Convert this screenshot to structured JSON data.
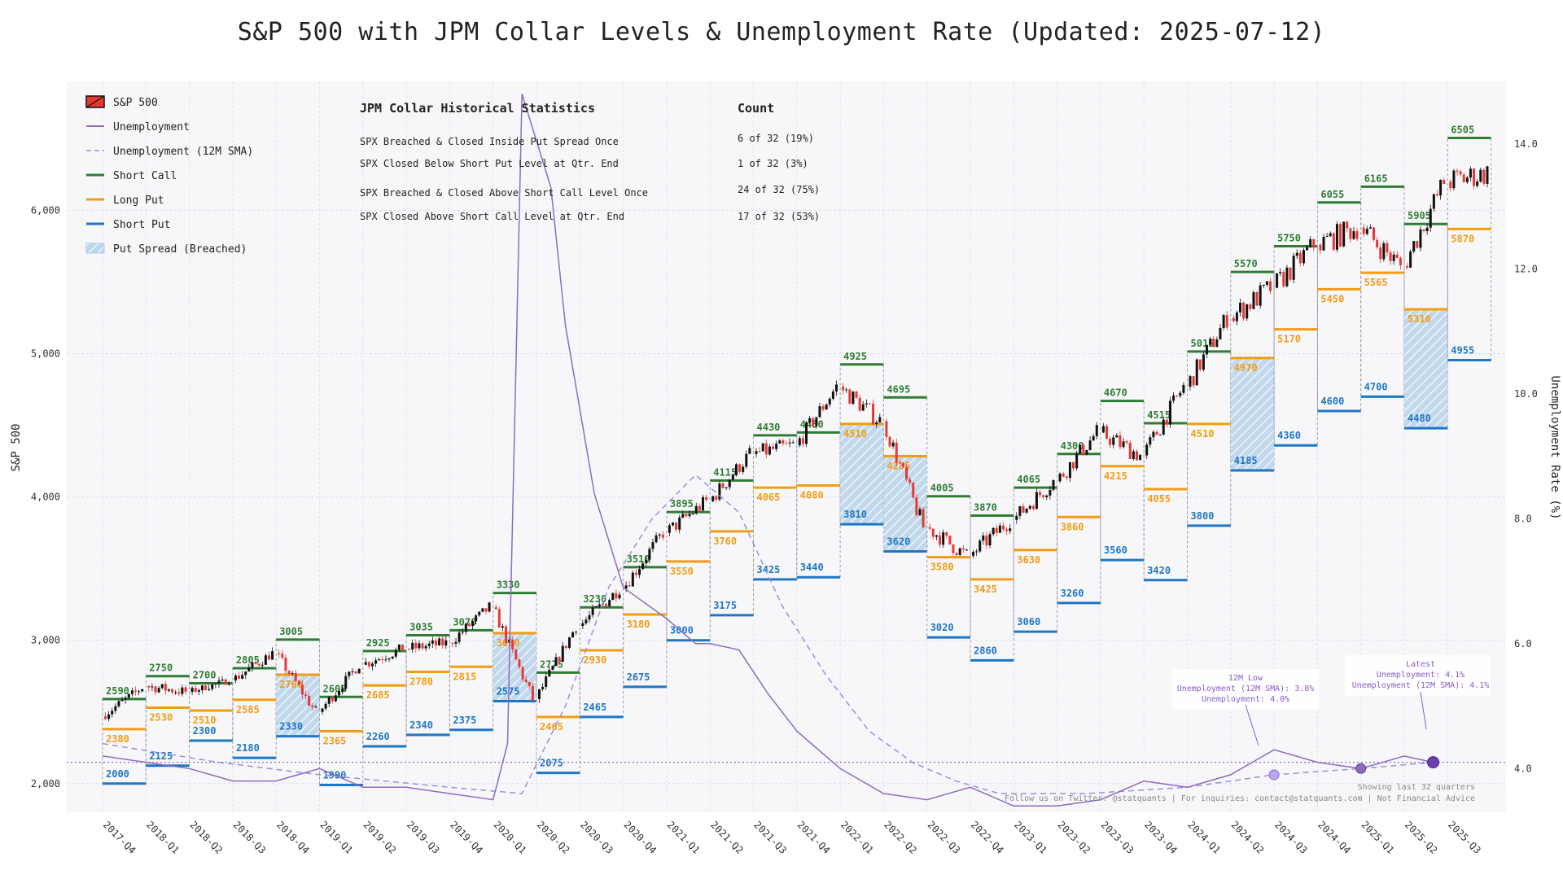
{
  "title": "S&P 500 with JPM Collar Levels & Unemployment Rate (Updated: 2025-07-12)",
  "colors": {
    "short_call": "#2e7d32",
    "long_put": "#f39c12",
    "short_put": "#1f77c4",
    "unemployment": "#8e6bbf",
    "sma": "#9a8ee0",
    "candle_up": "#111111",
    "candle_down": "#e53935",
    "spread_fill": "#a9cbe6",
    "plot_bg": "#f7f7fa"
  },
  "legend": {
    "sp500": "S&P 500",
    "unemployment": "Unemployment",
    "sma": "Unemployment (12M SMA)",
    "short_call": "Short Call",
    "long_put": "Long Put",
    "short_put": "Short Put",
    "put_spread": "Put Spread (Breached)"
  },
  "stats": {
    "header_left": "JPM Collar Historical Statistics",
    "header_right": "Count",
    "rows": [
      {
        "label": "SPX Breached & Closed Inside Put Spread Once",
        "value": "6 of 32 (19%)"
      },
      {
        "label": "SPX Closed Below Short Put Level at Qtr. End",
        "value": "1 of 32 (3%)"
      },
      {
        "label": "SPX Breached & Closed Above Short Call Level Once",
        "value": "24 of 32 (75%)"
      },
      {
        "label": "SPX Closed Above Short Call Level at Qtr. End",
        "value": "17 of 32 (53%)"
      }
    ]
  },
  "annotations": {
    "low": [
      "12M Low",
      "Unemployment (12M SMA): 3.8%",
      "Unemployment: 4.0%"
    ],
    "latest": [
      "Latest",
      "Unemployment: 4.1%",
      "Unemployment (12M SMA): 4.1%"
    ]
  },
  "footer": {
    "line1": "Showing last 32 quarters",
    "line2": "Follow us on Twitter: @statquants | For inquiries: contact@statquants.com | Not Financial Advice"
  },
  "chart_data": {
    "type": "candlestick+levels+line",
    "title": "S&P 500 with JPM Collar Levels & Unemployment Rate (Updated: 2025-07-12)",
    "ylabel": "S&P 500",
    "y2label": "Unemployment Rate (%)",
    "ylim": [
      1800,
      6900
    ],
    "y2lim": [
      3.3,
      15.0
    ],
    "yticks": [
      2000,
      3000,
      4000,
      5000,
      6000
    ],
    "ytick_labels": [
      "2,000",
      "3,000",
      "4,000",
      "5,000",
      "6,000"
    ],
    "y2ticks": [
      4.0,
      6.0,
      8.0,
      10.0,
      12.0,
      14.0
    ],
    "y2tick_labels": [
      "4.0",
      "6.0",
      "8.0",
      "10.0",
      "12.0",
      "14.0"
    ],
    "grid": true,
    "legend_position": "top-left",
    "ref_line_unemployment": 4.1,
    "quarters": [
      {
        "label": "2017-Q4",
        "sc": 2590,
        "lp": 2380,
        "sp": 2000,
        "breach": false,
        "open": 2470,
        "close": 2670
      },
      {
        "label": "2018-Q1",
        "sc": 2750,
        "lp": 2530,
        "sp": 2125,
        "breach": false,
        "open": 2680,
        "close": 2640
      },
      {
        "label": "2018-Q2",
        "sc": 2700,
        "lp": 2510,
        "sp": 2300,
        "breach": false,
        "open": 2640,
        "close": 2720
      },
      {
        "label": "2018-Q3",
        "sc": 2805,
        "lp": 2585,
        "sp": 2180,
        "breach": false,
        "open": 2720,
        "close": 2910
      },
      {
        "label": "2018-Q4",
        "sc": 3005,
        "lp": 2760,
        "sp": 2330,
        "breach": true,
        "open": 2910,
        "close": 2500
      },
      {
        "label": "2019-Q1",
        "sc": 2605,
        "lp": 2365,
        "sp": 1990,
        "breach": false,
        "open": 2500,
        "close": 2830
      },
      {
        "label": "2019-Q2",
        "sc": 2925,
        "lp": 2685,
        "sp": 2260,
        "breach": false,
        "open": 2830,
        "close": 2940
      },
      {
        "label": "2019-Q3",
        "sc": 3035,
        "lp": 2780,
        "sp": 2340,
        "breach": false,
        "open": 2940,
        "close": 2980
      },
      {
        "label": "2019-Q4",
        "sc": 3070,
        "lp": 2815,
        "sp": 2375,
        "breach": false,
        "open": 2980,
        "close": 3230
      },
      {
        "label": "2020-Q1",
        "sc": 3330,
        "lp": 3050,
        "sp": 2575,
        "breach": true,
        "open": 3230,
        "close": 2590
      },
      {
        "label": "2020-Q2",
        "sc": 2775,
        "lp": 2465,
        "sp": 2075,
        "breach": false,
        "open": 2590,
        "close": 3100
      },
      {
        "label": "2020-Q3",
        "sc": 3230,
        "lp": 2930,
        "sp": 2465,
        "breach": false,
        "open": 3100,
        "close": 3360
      },
      {
        "label": "2020-Q4",
        "sc": 3510,
        "lp": 3180,
        "sp": 2675,
        "breach": false,
        "open": 3360,
        "close": 3750
      },
      {
        "label": "2021-Q1",
        "sc": 3895,
        "lp": 3550,
        "sp": 3000,
        "breach": false,
        "open": 3750,
        "close": 3970
      },
      {
        "label": "2021-Q2",
        "sc": 4115,
        "lp": 3760,
        "sp": 3175,
        "breach": false,
        "open": 3970,
        "close": 4300
      },
      {
        "label": "2021-Q3",
        "sc": 4430,
        "lp": 4065,
        "sp": 3425,
        "breach": false,
        "open": 4300,
        "close": 4360
      },
      {
        "label": "2021-Q4",
        "sc": 4450,
        "lp": 4080,
        "sp": 3440,
        "breach": false,
        "open": 4360,
        "close": 4770
      },
      {
        "label": "2022-Q1",
        "sc": 4925,
        "lp": 4510,
        "sp": 3810,
        "breach": true,
        "open": 4770,
        "close": 4530
      },
      {
        "label": "2022-Q2",
        "sc": 4695,
        "lp": 4285,
        "sp": 3620,
        "breach": true,
        "open": 4530,
        "close": 3790
      },
      {
        "label": "2022-Q3",
        "sc": 4005,
        "lp": 3580,
        "sp": 3020,
        "breach": false,
        "open": 3790,
        "close": 3590
      },
      {
        "label": "2022-Q4",
        "sc": 3870,
        "lp": 3425,
        "sp": 2860,
        "breach": false,
        "open": 3590,
        "close": 3840
      },
      {
        "label": "2023-Q1",
        "sc": 4065,
        "lp": 3630,
        "sp": 3060,
        "breach": false,
        "open": 3840,
        "close": 4110
      },
      {
        "label": "2023-Q2",
        "sc": 4300,
        "lp": 3860,
        "sp": 3260,
        "breach": false,
        "open": 4110,
        "close": 4450
      },
      {
        "label": "2023-Q3",
        "sc": 4670,
        "lp": 4215,
        "sp": 3560,
        "breach": false,
        "open": 4450,
        "close": 4290
      },
      {
        "label": "2023-Q4",
        "sc": 4515,
        "lp": 4055,
        "sp": 3420,
        "breach": false,
        "open": 4290,
        "close": 4770
      },
      {
        "label": "2024-Q1",
        "sc": 5015,
        "lp": 4510,
        "sp": 3800,
        "breach": false,
        "open": 4770,
        "close": 5250
      },
      {
        "label": "2024-Q2",
        "sc": 5570,
        "lp": 4970,
        "sp": 4185,
        "breach": true,
        "open": 5250,
        "close": 5460
      },
      {
        "label": "2024-Q3",
        "sc": 5750,
        "lp": 5170,
        "sp": 4360,
        "breach": false,
        "open": 5460,
        "close": 5760
      },
      {
        "label": "2024-Q4",
        "sc": 6055,
        "lp": 5450,
        "sp": 4600,
        "breach": false,
        "open": 5760,
        "close": 5880
      },
      {
        "label": "2025-Q1",
        "sc": 6165,
        "lp": 5565,
        "sp": 4700,
        "breach": false,
        "open": 5880,
        "close": 5610
      },
      {
        "label": "2025-Q2",
        "sc": 5905,
        "lp": 5310,
        "sp": 4480,
        "breach": true,
        "open": 5610,
        "close": 6200
      },
      {
        "label": "2025-Q3",
        "sc": 6505,
        "lp": 5870,
        "sp": 4955,
        "breach": false,
        "open": 6200,
        "close": 6260
      }
    ],
    "unemployment": [
      {
        "date": "2017-10",
        "u": 4.2
      },
      {
        "date": "2018-01",
        "u": 4.1
      },
      {
        "date": "2018-04",
        "u": 4.0
      },
      {
        "date": "2018-07",
        "u": 3.8
      },
      {
        "date": "2018-10",
        "u": 3.8
      },
      {
        "date": "2019-01",
        "u": 4.0
      },
      {
        "date": "2019-04",
        "u": 3.7
      },
      {
        "date": "2019-07",
        "u": 3.7
      },
      {
        "date": "2019-10",
        "u": 3.6
      },
      {
        "date": "2020-01",
        "u": 3.5
      },
      {
        "date": "2020-02",
        "u": 4.4
      },
      {
        "date": "2020-03",
        "u": 14.8
      },
      {
        "date": "2020-05",
        "u": 13.3
      },
      {
        "date": "2020-06",
        "u": 11.1
      },
      {
        "date": "2020-08",
        "u": 8.4
      },
      {
        "date": "2020-10",
        "u": 6.9
      },
      {
        "date": "2021-01",
        "u": 6.4
      },
      {
        "date": "2021-03",
        "u": 6.0
      },
      {
        "date": "2021-04",
        "u": 6.0
      },
      {
        "date": "2021-06",
        "u": 5.9
      },
      {
        "date": "2021-08",
        "u": 5.2
      },
      {
        "date": "2021-10",
        "u": 4.6
      },
      {
        "date": "2022-01",
        "u": 4.0
      },
      {
        "date": "2022-04",
        "u": 3.6
      },
      {
        "date": "2022-07",
        "u": 3.5
      },
      {
        "date": "2022-10",
        "u": 3.7
      },
      {
        "date": "2023-01",
        "u": 3.4
      },
      {
        "date": "2023-04",
        "u": 3.4
      },
      {
        "date": "2023-07",
        "u": 3.5
      },
      {
        "date": "2023-10",
        "u": 3.8
      },
      {
        "date": "2024-01",
        "u": 3.7
      },
      {
        "date": "2024-04",
        "u": 3.9
      },
      {
        "date": "2024-07",
        "u": 4.3
      },
      {
        "date": "2024-10",
        "u": 4.1
      },
      {
        "date": "2025-01",
        "u": 4.0
      },
      {
        "date": "2025-04",
        "u": 4.2
      },
      {
        "date": "2025-06",
        "u": 4.1
      }
    ],
    "unemployment_sma": [
      {
        "date": "2017-10",
        "u": 4.4
      },
      {
        "date": "2018-06",
        "u": 4.1
      },
      {
        "date": "2019-01",
        "u": 3.9
      },
      {
        "date": "2019-10",
        "u": 3.7
      },
      {
        "date": "2020-03",
        "u": 3.6
      },
      {
        "date": "2020-06",
        "u": 5.0
      },
      {
        "date": "2020-09",
        "u": 6.9
      },
      {
        "date": "2020-12",
        "u": 8.0
      },
      {
        "date": "2021-03",
        "u": 8.7
      },
      {
        "date": "2021-06",
        "u": 8.1
      },
      {
        "date": "2021-09",
        "u": 6.6
      },
      {
        "date": "2021-12",
        "u": 5.5
      },
      {
        "date": "2022-03",
        "u": 4.6
      },
      {
        "date": "2022-06",
        "u": 4.1
      },
      {
        "date": "2022-09",
        "u": 3.8
      },
      {
        "date": "2022-12",
        "u": 3.6
      },
      {
        "date": "2023-06",
        "u": 3.6
      },
      {
        "date": "2024-01",
        "u": 3.7
      },
      {
        "date": "2024-07",
        "u": 3.9
      },
      {
        "date": "2025-01",
        "u": 4.0
      },
      {
        "date": "2025-06",
        "u": 4.1
      }
    ]
  }
}
